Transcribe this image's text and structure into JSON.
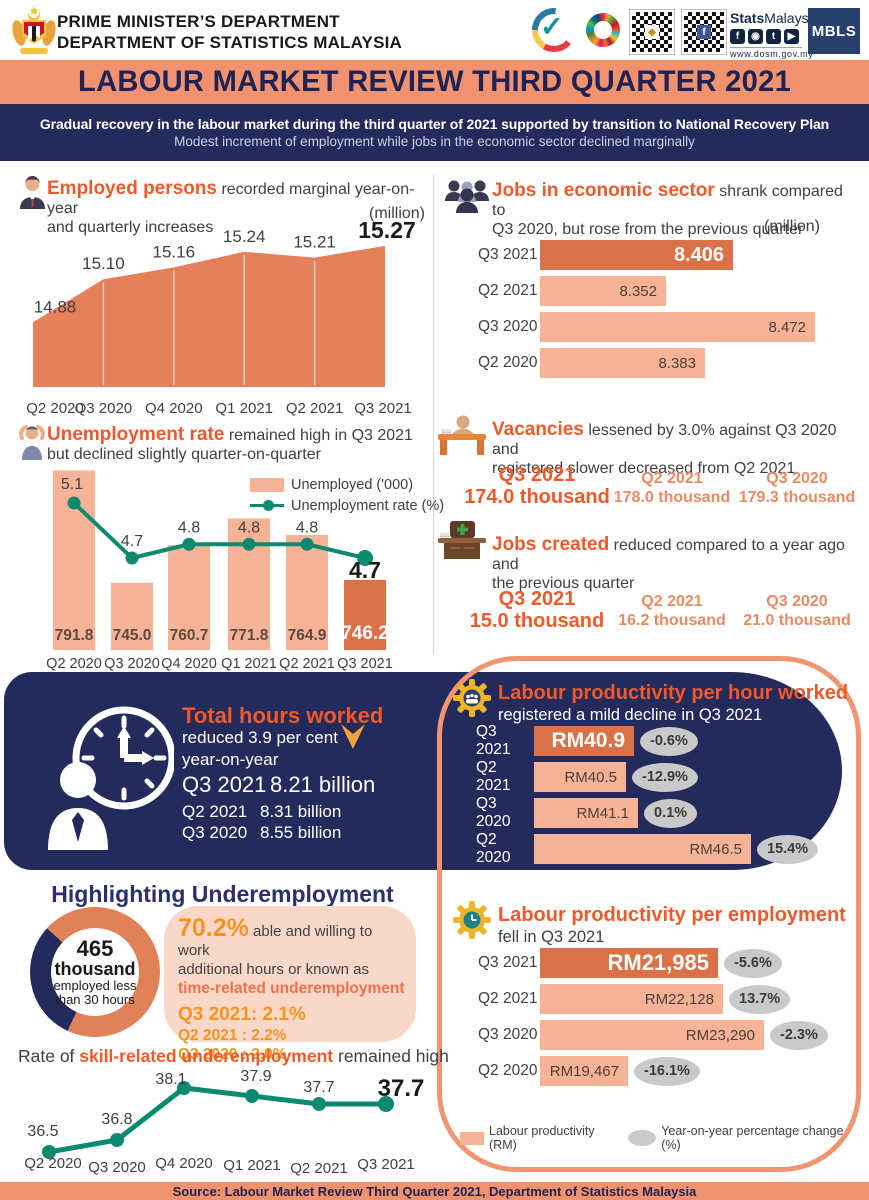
{
  "colors": {
    "accent_orange": "#F1592A",
    "salmon_band": "#F0926E",
    "navy": "#232B5C",
    "bar_light": "#F8B396",
    "bar_dark": "#DB7247",
    "teal_line": "#0B8A6F",
    "amber": "#F7941E",
    "badge_grey": "#C9C9CB",
    "pink_panel": "#FAD8C9"
  },
  "header": {
    "dept1": "PRIME MINISTER’S DEPARTMENT",
    "dept2": "DEPARTMENT OF STATISTICS MALAYSIA",
    "stats_bold": "Stats",
    "stats_rest": "Malaysia",
    "website": "www.dosm.gov.my",
    "mbls": "MBLS",
    "social": [
      "f",
      "◉",
      "t",
      "▶"
    ],
    "mycensus_check": "✓",
    "qr_chip1": "◆",
    "qr_chip2": "f"
  },
  "banner": {
    "title": "LABOUR MARKET REVIEW THIRD QUARTER 2021"
  },
  "summary": {
    "line1": "Gradual recovery in the labour market during the third quarter of 2021 supported by transition to National Recovery Plan",
    "line2": "Modest increment of employment while jobs in the economic sector declined marginally"
  },
  "sections": {
    "employed": {
      "highlight": "Employed persons",
      "rest1": " recorded marginal year-on-year",
      "rest2": "and quarterly increases",
      "unit": "(million)"
    },
    "jobs_sector": {
      "highlight": "Jobs in economic sector",
      "rest1": " shrank compared to",
      "rest2": "Q3 2020, but rose from the previous quarter",
      "unit": "(million)"
    },
    "unemployment": {
      "highlight": "Unemployment rate",
      "rest1": " remained high in Q3 2021",
      "rest2": "but declined slightly quarter-on-quarter",
      "legend_bar": "Unemployed ('000)",
      "legend_line": "Unemployment rate (%)"
    },
    "vacancies": {
      "highlight": "Vacancies",
      "rest1": " lessened by 3.0% against Q3 2020 and",
      "rest2": "registered slower decreased from Q2 2021",
      "stats": [
        {
          "period": "Q3 2021",
          "value": "174.0 thousand"
        },
        {
          "period": "Q2 2021",
          "value": "178.0 thousand"
        },
        {
          "period": "Q3 2020",
          "value": "179.3 thousand"
        }
      ]
    },
    "jobs_created": {
      "highlight": "Jobs created",
      "rest1": " reduced compared to a year ago and",
      "rest2": "the previous quarter",
      "stats": [
        {
          "period": "Q3 2021",
          "value": "15.0 thousand"
        },
        {
          "period": "Q2 2021",
          "value": "16.2 thousand"
        },
        {
          "period": "Q3 2020",
          "value": "21.0 thousand"
        }
      ]
    },
    "total_hours": {
      "title": "Total hours worked",
      "sub1": "reduced 3.9 per cent",
      "sub2": "year-on-year",
      "rows": [
        {
          "period": "Q3 2021",
          "value": "8.21 billion"
        },
        {
          "period": "Q2 2021",
          "value": "8.31 billion"
        },
        {
          "period": "Q3 2020",
          "value": "8.55 billion"
        }
      ]
    },
    "productivity_hour": {
      "highlight": "Labour productivity per hour worked",
      "rest": "registered a mild decline in Q3 2021"
    },
    "underemployment": {
      "title": "Highlighting Underemployment",
      "donut_center": [
        "465",
        "thousand",
        "employed less",
        "than 30 hours"
      ],
      "pct": "70.2%",
      "text1": " able and willing to work",
      "text2": "additional hours or known as",
      "highlight": "time-related underemployment",
      "rates": [
        "Q3 2021: 2.1%",
        "Q2 2021  :  2.2%",
        "Q3 2020  :  2.0%"
      ]
    },
    "skill": {
      "prefix": "Rate of ",
      "highlight": "skill-related underemployment",
      "suffix": " remained high"
    },
    "productivity_employment": {
      "highlight": "Labour productivity per employment",
      "rest": "fell in Q3 2021"
    },
    "legend": {
      "bar": "Labour productivity (RM)",
      "badge": "Year-on-year percentage change (%)"
    }
  },
  "footer": {
    "source": "Source: Labour Market Review Third Quarter 2021, Department of Statistics Malaysia"
  },
  "chart_data": [
    {
      "id": "employed",
      "type": "area",
      "title": "Employed persons",
      "categories": [
        "Q2 2020",
        "Q3 2020",
        "Q4 2020",
        "Q1 2021",
        "Q2 2021",
        "Q3 2021"
      ],
      "values": [
        14.88,
        15.1,
        15.16,
        15.24,
        15.21,
        15.27
      ],
      "labels": [
        "14.88",
        "15.10",
        "15.16",
        "15.24",
        "15.21",
        "15.27"
      ],
      "ylabel": "(million)",
      "ylim": [
        14.55,
        15.35
      ],
      "emphasize": 5
    },
    {
      "id": "jobs_sector",
      "type": "bar",
      "orientation": "horizontal",
      "title": "Jobs in economic sector",
      "categories": [
        "Q3 2021",
        "Q2 2021",
        "Q3 2020",
        "Q2 2020"
      ],
      "values": [
        8.406,
        8.352,
        8.472,
        8.383
      ],
      "labels": [
        "8.406",
        "8.352",
        "8.472",
        "8.383"
      ],
      "xlabel": "(million)",
      "xlim": [
        8.25,
        8.48
      ],
      "emphasize": 0
    },
    {
      "id": "unemployment",
      "type": "combo",
      "title": "Unemployment rate",
      "categories": [
        "Q2 2020",
        "Q3 2020",
        "Q4 2020",
        "Q1 2021",
        "Q2 2021",
        "Q3 2021"
      ],
      "bar_series": "Unemployed ('000)",
      "bar_values": [
        791.8,
        745.0,
        760.7,
        771.8,
        764.9,
        746.2
      ],
      "bar_labels": [
        "791.8",
        "745.0",
        "760.7",
        "771.8",
        "764.9",
        "746.2"
      ],
      "bar_ylim": [
        717,
        795
      ],
      "line_series": "Unemployment rate (%)",
      "line_values": [
        5.1,
        4.7,
        4.8,
        4.8,
        4.8,
        4.7
      ],
      "line_labels": [
        "5.1",
        "4.7",
        "4.8",
        "4.8",
        "4.8",
        "4.7"
      ],
      "emphasize": 5
    },
    {
      "id": "productivity_hour",
      "type": "bar",
      "orientation": "horizontal",
      "title": "Labour productivity per hour worked",
      "categories": [
        "Q3 2021",
        "Q2 2021",
        "Q3 2020",
        "Q2 2020"
      ],
      "values": [
        40.9,
        40.5,
        41.1,
        46.5
      ],
      "labels": [
        "RM40.9",
        "RM40.5",
        "RM41.1",
        "RM46.5"
      ],
      "changes": [
        "-0.6%",
        "-12.9%",
        "0.1%",
        "15.4%"
      ],
      "xlim": [
        36.1,
        46.5
      ],
      "emphasize": 0
    },
    {
      "id": "underemployment_donut",
      "type": "pie",
      "values": [
        70.2,
        29.8
      ],
      "labels": [
        "time-related underemployment 70.2%",
        "other 29.8%"
      ],
      "center_text": [
        "465",
        "thousand",
        "employed less",
        "than 30 hours"
      ]
    },
    {
      "id": "skill_line",
      "type": "line",
      "title": "Rate of skill-related underemployment",
      "categories": [
        "Q2 2020",
        "Q3 2020",
        "Q4 2020",
        "Q1 2021",
        "Q2 2021",
        "Q3 2021"
      ],
      "values": [
        36.5,
        36.8,
        38.1,
        37.9,
        37.7,
        37.7
      ],
      "labels": [
        "36.5",
        "36.8",
        "38.1",
        "37.9",
        "37.7",
        "37.7"
      ],
      "emphasize": 5
    },
    {
      "id": "productivity_employment",
      "type": "bar",
      "orientation": "horizontal",
      "title": "Labour productivity per employment",
      "categories": [
        "Q3 2021",
        "Q2 2021",
        "Q3 2020",
        "Q2 2020"
      ],
      "values": [
        21985,
        22128,
        23290,
        19467
      ],
      "labels": [
        "RM21,985",
        "RM22,128",
        "RM23,290",
        "RM19,467"
      ],
      "changes": [
        "-5.6%",
        "13.7%",
        "-2.3%",
        "-16.1%"
      ],
      "xlim": [
        17000,
        23290
      ],
      "emphasize": 0
    }
  ]
}
